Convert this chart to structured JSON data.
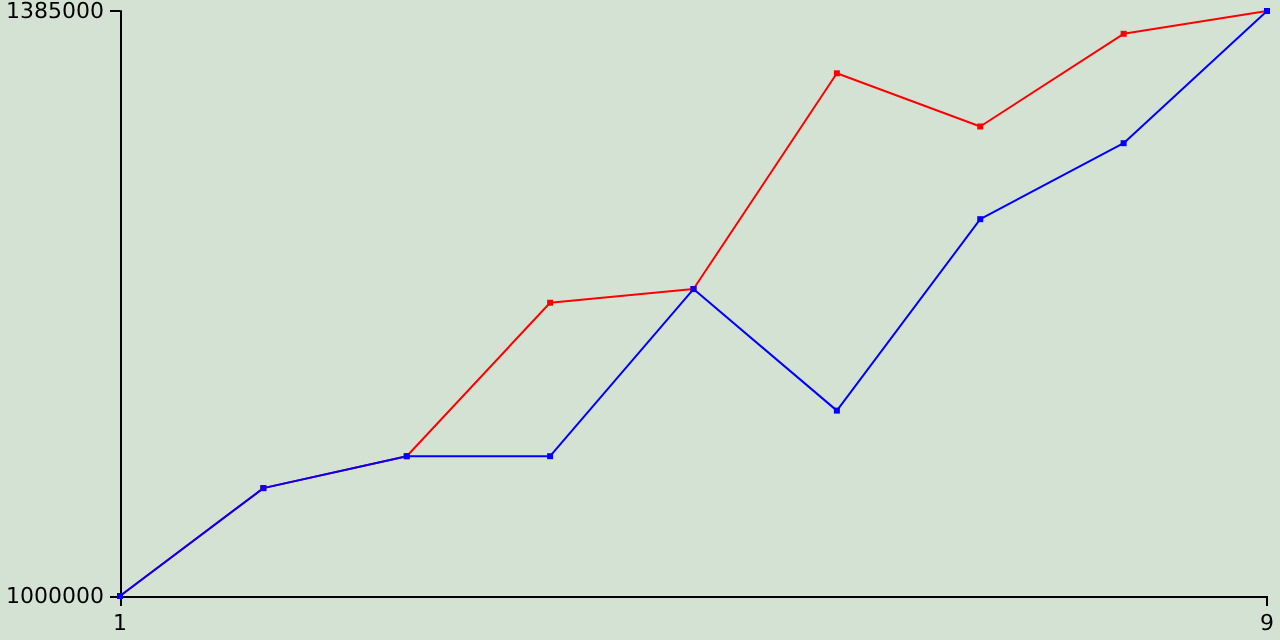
{
  "chart_data": {
    "type": "line",
    "x": [
      1,
      2,
      3,
      4,
      5,
      6,
      7,
      8,
      9
    ],
    "series": [
      {
        "color": "#ff0000",
        "values": [
          1000000,
          1071000,
          1092000,
          1193000,
          1202000,
          1344000,
          1309000,
          1370000,
          1385000
        ]
      },
      {
        "color": "#0000ff",
        "values": [
          1000000,
          1071000,
          1092000,
          1092000,
          1202000,
          1122000,
          1248000,
          1298000,
          1385000
        ]
      }
    ],
    "xlim": [
      1,
      9
    ],
    "xticks": [
      1,
      9
    ],
    "ylim": [
      1000000,
      1385000
    ],
    "yticks": [
      1000000,
      1385000
    ],
    "grid": false,
    "marker": "square",
    "line_style": "solid"
  }
}
